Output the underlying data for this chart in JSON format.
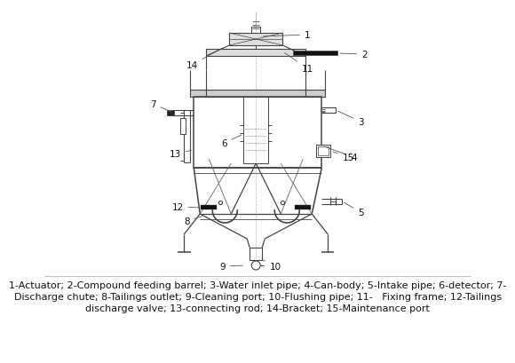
{
  "caption_lines": [
    "1-Actuator; 2-Compound feeding barrel; 3-Water inlet pipe; 4-Can-body; 5-Intake pipe; 6-detector; 7-",
    "Discharge chute; 8-Tailings outlet; 9-Cleaning port; 10-Flushing pipe; 11-   Fixing frame; 12-Tailings",
    "discharge valve; 13-connecting rod; 14-Bracket; 15-Maintenance port"
  ],
  "bg_color": "#ffffff",
  "line_color": "#444444",
  "label_color": "#111111",
  "label_fontsize": 7.5,
  "caption_fontsize": 8.0
}
